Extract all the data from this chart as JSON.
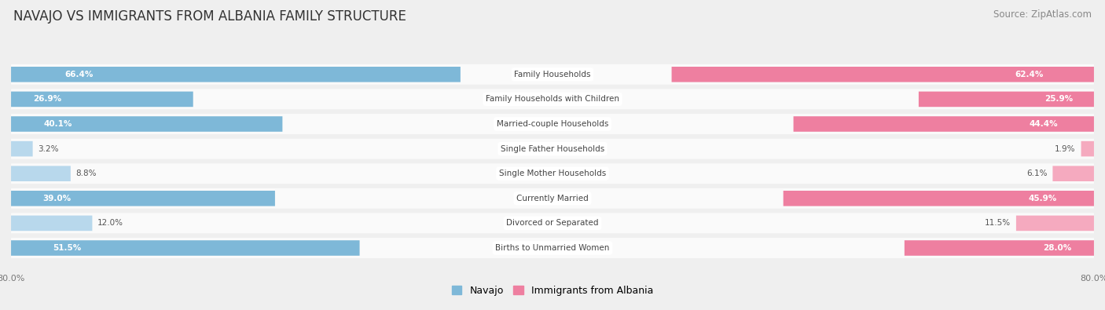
{
  "title": "NAVAJO VS IMMIGRANTS FROM ALBANIA FAMILY STRUCTURE",
  "source": "Source: ZipAtlas.com",
  "categories": [
    "Family Households",
    "Family Households with Children",
    "Married-couple Households",
    "Single Father Households",
    "Single Mother Households",
    "Currently Married",
    "Divorced or Separated",
    "Births to Unmarried Women"
  ],
  "navajo_values": [
    66.4,
    26.9,
    40.1,
    3.2,
    8.8,
    39.0,
    12.0,
    51.5
  ],
  "albania_values": [
    62.4,
    25.9,
    44.4,
    1.9,
    6.1,
    45.9,
    11.5,
    28.0
  ],
  "navajo_color": "#7EB8D8",
  "albania_color": "#EE7FA0",
  "navajo_color_light": "#B8D8EC",
  "albania_color_light": "#F5AABF",
  "navajo_label": "Navajo",
  "albania_label": "Immigrants from Albania",
  "axis_max": 80.0,
  "bg_color": "#EFEFEF",
  "row_bg_color": "#FAFAFA",
  "title_fontsize": 12,
  "source_fontsize": 8.5,
  "label_fontsize": 7.5,
  "value_fontsize": 7.5,
  "legend_fontsize": 9,
  "axis_label_fontsize": 8,
  "large_threshold": 15
}
